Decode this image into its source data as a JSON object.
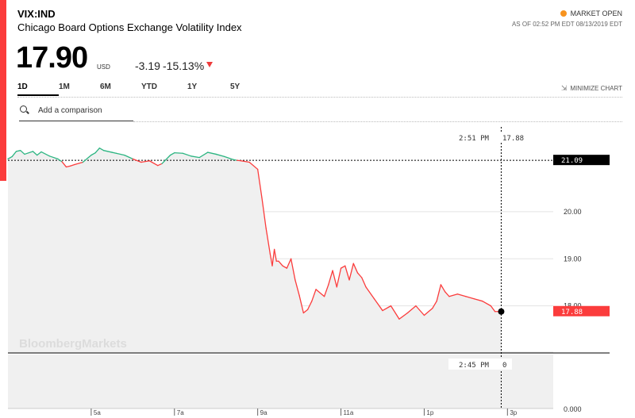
{
  "header": {
    "symbol": "VIX:IND",
    "name": "Chicago Board Options Exchange Volatility Index",
    "market_status": "MARKET OPEN",
    "as_of": "AS OF 02:52 PM EDT 08/13/2019 EDT"
  },
  "quote": {
    "price": "17.90",
    "currency": "USD",
    "change": "-3.19",
    "change_pct": "-15.13%"
  },
  "ranges": [
    "1D",
    "1M",
    "6M",
    "YTD",
    "1Y",
    "5Y"
  ],
  "active_range": "1D",
  "minimize_label": "MINIMIZE CHART",
  "comparison": {
    "placeholder": "Add a comparison"
  },
  "colors": {
    "up": "#2db582",
    "down": "#fb3c3c",
    "accent": "#fb3c3c",
    "market_open_dot": "#f7931e",
    "prev_close_label_bg": "#000000"
  },
  "watermark": "BloombergMarkets",
  "chart_data": {
    "type": "line",
    "title": "",
    "ylim": [
      17.0,
      21.8
    ],
    "y_ticks": [
      "20.00",
      "19.00",
      "18.00"
    ],
    "x_ticks": [
      {
        "label": "5a",
        "x": 5.0
      },
      {
        "label": "7a",
        "x": 7.0
      },
      {
        "label": "9a",
        "x": 9.0
      },
      {
        "label": "11a",
        "x": 11.0
      },
      {
        "label": "1p",
        "x": 13.0
      },
      {
        "label": "3p",
        "x": 15.0
      }
    ],
    "prev_close": 21.09,
    "prev_close_label": "21.09",
    "last": 17.88,
    "last_label": "17.88",
    "crosshair": {
      "time_label": "2:51 PM",
      "value_label": "17.88"
    },
    "volume": {
      "time_label": "2:45 PM",
      "value_label": "0",
      "y_tick": "0.000"
    },
    "series": [
      {
        "x": [
          3.0,
          3.1,
          3.2,
          3.3,
          3.4,
          3.6,
          3.7,
          3.8,
          4.0,
          4.2,
          4.3,
          4.4,
          4.5,
          4.6,
          4.8,
          5.0,
          5.1,
          5.2,
          5.3,
          5.5,
          5.6,
          5.8,
          6.0,
          6.2,
          6.4,
          6.6,
          6.7,
          6.9,
          7.0,
          7.2,
          7.4,
          7.6,
          7.8,
          8.0,
          8.2,
          8.4,
          8.5,
          8.6,
          8.8,
          9.0,
          9.1,
          9.2,
          9.3,
          9.35,
          9.4,
          9.45,
          9.5,
          9.6,
          9.7,
          9.8,
          9.9,
          10.0,
          10.1,
          10.2,
          10.3,
          10.4,
          10.6,
          10.7,
          10.8,
          10.9,
          11.0,
          11.1,
          11.2,
          11.3,
          11.4,
          11.5,
          11.6,
          11.8,
          12.0,
          12.2,
          12.4,
          12.6,
          12.8,
          13.0,
          13.2,
          13.3,
          13.4,
          13.5,
          13.6,
          13.8,
          14.0,
          14.2,
          14.4,
          14.6,
          14.7,
          14.85
        ],
        "y": [
          21.12,
          21.17,
          21.28,
          21.3,
          21.22,
          21.28,
          21.2,
          21.27,
          21.18,
          21.12,
          21.06,
          20.95,
          20.97,
          21.0,
          21.05,
          21.2,
          21.25,
          21.35,
          21.3,
          21.26,
          21.24,
          21.2,
          21.12,
          21.05,
          21.08,
          20.98,
          21.02,
          21.2,
          21.25,
          21.24,
          21.18,
          21.15,
          21.26,
          21.22,
          21.17,
          21.11,
          21.09,
          21.08,
          21.05,
          20.9,
          20.3,
          19.65,
          19.1,
          18.85,
          19.2,
          18.95,
          18.95,
          18.85,
          18.8,
          19.0,
          18.55,
          18.22,
          17.85,
          17.92,
          18.1,
          18.35,
          18.2,
          18.45,
          18.75,
          18.4,
          18.8,
          18.85,
          18.55,
          18.9,
          18.7,
          18.6,
          18.4,
          18.15,
          17.9,
          18.0,
          17.72,
          17.85,
          18.0,
          17.8,
          17.95,
          18.1,
          18.45,
          18.3,
          18.2,
          18.25,
          18.2,
          18.15,
          18.1,
          18.0,
          17.88,
          17.88
        ]
      }
    ]
  }
}
